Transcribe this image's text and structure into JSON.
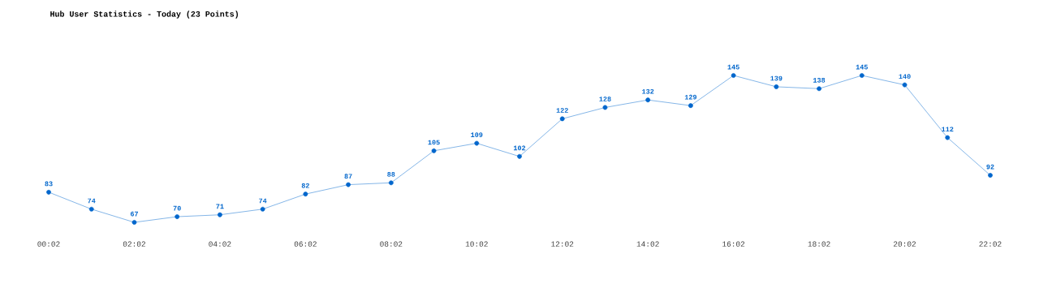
{
  "chart_data": {
    "type": "line",
    "title": "Hub User Statistics - Today (23 Points)",
    "categories": [
      "00:02",
      null,
      "02:02",
      null,
      "04:02",
      null,
      "06:02",
      null,
      "08:02",
      null,
      "10:02",
      null,
      "12:02",
      null,
      "14:02",
      null,
      "16:02",
      null,
      "18:02",
      null,
      "20:02",
      null,
      "22:02"
    ],
    "series": [
      {
        "color": "#0066cc",
        "values": [
          83,
          74,
          67,
          70,
          71,
          74,
          82,
          87,
          88,
          105,
          109,
          102,
          122,
          128,
          132,
          129,
          145,
          139,
          138,
          145,
          140,
          112,
          92
        ]
      }
    ],
    "data_labels": true,
    "marker": "circle",
    "line_style": "solid"
  }
}
